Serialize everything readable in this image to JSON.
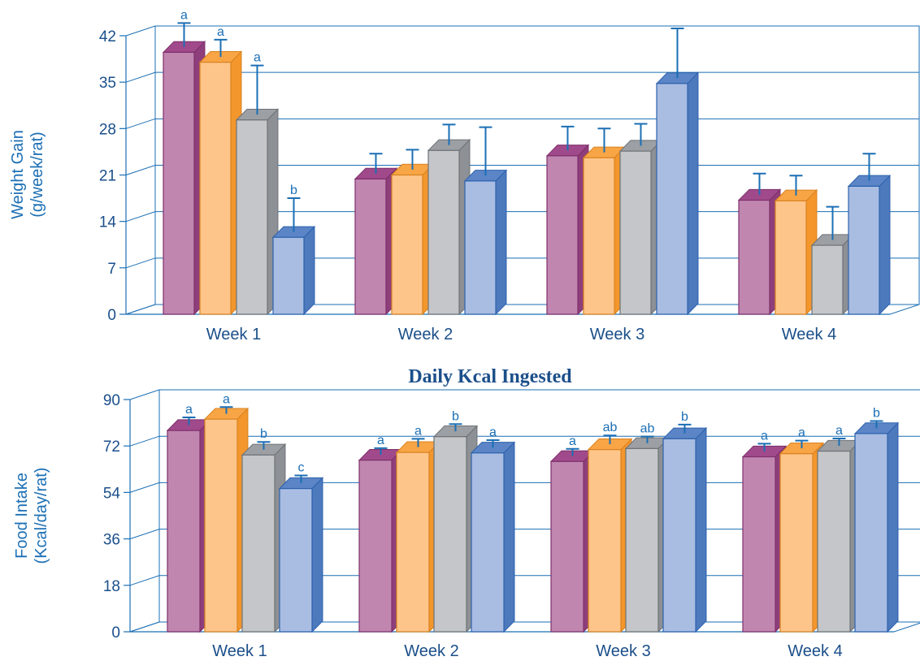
{
  "colors": {
    "axis": "#1b6fb5",
    "grid": "#1b6fb5",
    "text": "#1b4f8a",
    "series_front": [
      "#c086b0",
      "#fec58a",
      "#c4c6c9",
      "#a9bde2"
    ],
    "series_top": [
      "#a04a8b",
      "#f8a546",
      "#9c9fa3",
      "#5b85c6"
    ],
    "series_side": [
      "#8e3f7b",
      "#f3962c",
      "#8d9094",
      "#4d79bd"
    ],
    "series_stroke": [
      "#7e2f6b",
      "#d9821f",
      "#6e7276",
      "#2d62ad"
    ]
  },
  "chart_data": [
    {
      "type": "bar",
      "title": "",
      "xlabel": "",
      "ylabel": "Weight Gain (g/week/rat)",
      "ylabel_lines": [
        "Weight Gain",
        "(g/week/rat)"
      ],
      "ylim": [
        0,
        42
      ],
      "yticks": [
        0,
        7,
        14,
        21,
        28,
        35,
        42
      ],
      "grid": true,
      "categories": [
        "Week 1",
        "Week 2",
        "Week 3",
        "Week 4"
      ],
      "series": [
        {
          "values": [
            39.5,
            20.4,
            23.9,
            17.2
          ],
          "errors": [
            3.6,
            3.0,
            3.6,
            3.2
          ],
          "labels": [
            "a",
            "",
            "",
            ""
          ]
        },
        {
          "values": [
            38.0,
            21.0,
            23.6,
            17.1
          ],
          "errors": [
            2.6,
            3.0,
            3.6,
            3.0
          ],
          "labels": [
            "a",
            "",
            "",
            ""
          ]
        },
        {
          "values": [
            29.3,
            24.7,
            24.6,
            10.4
          ],
          "errors": [
            7.4,
            3.1,
            3.3,
            5.0
          ],
          "labels": [
            "a",
            "",
            "",
            ""
          ]
        },
        {
          "values": [
            11.6,
            20.1,
            34.8,
            19.3
          ],
          "errors": [
            5.1,
            7.3,
            7.5,
            4.1
          ],
          "labels": [
            "b",
            "",
            "",
            ""
          ]
        }
      ]
    },
    {
      "type": "bar",
      "title": "Daily Kcal Ingested",
      "xlabel": "",
      "ylabel": "Food Intake (Kcal/day/rat)",
      "ylabel_lines": [
        "Food Intake",
        "(Kcal/day/rat)"
      ],
      "ylim": [
        0,
        90
      ],
      "yticks": [
        0,
        18,
        36,
        54,
        72,
        90
      ],
      "grid": true,
      "categories": [
        "Week 1",
        "Week 2",
        "Week 3",
        "Week 4"
      ],
      "series": [
        {
          "values": [
            78.0,
            66.5,
            66.0,
            67.8
          ],
          "errors": [
            3.0,
            2.6,
            2.8,
            3.0
          ],
          "labels": [
            "a",
            "a",
            "a",
            "a"
          ]
        },
        {
          "values": [
            82.4,
            69.5,
            70.6,
            69.0
          ],
          "errors": [
            2.6,
            3.2,
            3.4,
            3.0
          ],
          "labels": [
            "a",
            "a",
            "ab",
            "a"
          ]
        },
        {
          "values": [
            68.5,
            75.6,
            71.0,
            70.0
          ],
          "errors": [
            3.0,
            2.8,
            2.6,
            2.8
          ],
          "labels": [
            "b",
            "b",
            "ab",
            "a"
          ]
        },
        {
          "values": [
            55.5,
            69.3,
            74.8,
            76.8
          ],
          "errors": [
            3.0,
            2.9,
            3.4,
            2.8
          ],
          "labels": [
            "c",
            "a",
            "b",
            "b"
          ]
        }
      ]
    }
  ]
}
